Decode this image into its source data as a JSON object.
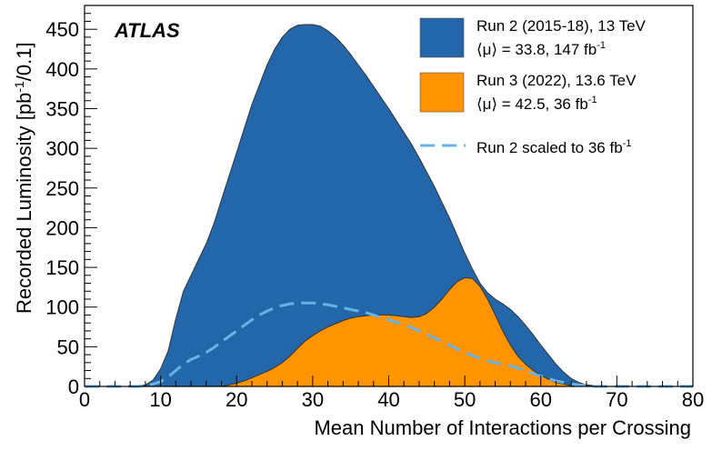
{
  "chart_data": {
    "type": "area",
    "experiment_label": "ATLAS",
    "xlabel": "Mean Number of Interactions per Crossing",
    "ylabel": "Recorded Luminosity [pb-1/0.1]",
    "ylabel_parts": {
      "main": "Recorded Luminosity [pb",
      "sup": "-1",
      "tail": "/0.1]"
    },
    "xlim": [
      0,
      80
    ],
    "ylim": [
      0,
      480
    ],
    "x_ticks": [
      0,
      10,
      20,
      30,
      40,
      50,
      60,
      70,
      80
    ],
    "y_ticks": [
      0,
      50,
      100,
      150,
      200,
      250,
      300,
      350,
      400,
      450
    ],
    "legend_position": "top-right",
    "series": [
      {
        "name": "Run 2 (2015-18), 13 TeV",
        "stats_label": "⟨μ⟩ = 33.8, 147 fb-1",
        "stats_parts": {
          "main": "⟨μ⟩ = 33.8, 147 fb",
          "sup": "-1"
        },
        "style": "filled",
        "color": "#2367aa",
        "points": [
          [
            0,
            0
          ],
          [
            7,
            0
          ],
          [
            8,
            2
          ],
          [
            9,
            8
          ],
          [
            10,
            22
          ],
          [
            11,
            45
          ],
          [
            12,
            85
          ],
          [
            13,
            120
          ],
          [
            14,
            140
          ],
          [
            15,
            160
          ],
          [
            16,
            180
          ],
          [
            17,
            205
          ],
          [
            18,
            235
          ],
          [
            19,
            265
          ],
          [
            20,
            295
          ],
          [
            21,
            325
          ],
          [
            22,
            355
          ],
          [
            23,
            380
          ],
          [
            24,
            405
          ],
          [
            25,
            425
          ],
          [
            26,
            440
          ],
          [
            27,
            450
          ],
          [
            28,
            455
          ],
          [
            29,
            456
          ],
          [
            30,
            456
          ],
          [
            31,
            454
          ],
          [
            32,
            448
          ],
          [
            33,
            440
          ],
          [
            34,
            430
          ],
          [
            35,
            418
          ],
          [
            36,
            405
          ],
          [
            37,
            392
          ],
          [
            38,
            378
          ],
          [
            39,
            364
          ],
          [
            40,
            350
          ],
          [
            41,
            335
          ],
          [
            42,
            320
          ],
          [
            43,
            305
          ],
          [
            44,
            288
          ],
          [
            45,
            270
          ],
          [
            46,
            252
          ],
          [
            47,
            232
          ],
          [
            48,
            212
          ],
          [
            49,
            190
          ],
          [
            50,
            168
          ],
          [
            51,
            148
          ],
          [
            52,
            130
          ],
          [
            53,
            118
          ],
          [
            54,
            110
          ],
          [
            55,
            104
          ],
          [
            56,
            97
          ],
          [
            57,
            88
          ],
          [
            58,
            77
          ],
          [
            59,
            65
          ],
          [
            60,
            52
          ],
          [
            61,
            40
          ],
          [
            62,
            28
          ],
          [
            63,
            18
          ],
          [
            64,
            10
          ],
          [
            65,
            5
          ],
          [
            66,
            2
          ],
          [
            67,
            1
          ],
          [
            68,
            0
          ],
          [
            80,
            0
          ]
        ]
      },
      {
        "name": "Run 3 (2022), 13.6 TeV",
        "stats_label": "⟨μ⟩ = 42.5, 36 fb-1",
        "stats_parts": {
          "main": "⟨μ⟩ = 42.5, 36 fb",
          "sup": "-1"
        },
        "style": "filled",
        "color": "#ff9400",
        "points": [
          [
            0,
            0
          ],
          [
            18,
            0
          ],
          [
            19,
            2
          ],
          [
            20,
            4
          ],
          [
            21,
            7
          ],
          [
            22,
            11
          ],
          [
            23,
            15
          ],
          [
            24,
            19
          ],
          [
            25,
            24
          ],
          [
            26,
            30
          ],
          [
            27,
            38
          ],
          [
            28,
            48
          ],
          [
            29,
            57
          ],
          [
            30,
            64
          ],
          [
            31,
            70
          ],
          [
            32,
            75
          ],
          [
            33,
            79
          ],
          [
            34,
            83
          ],
          [
            35,
            86
          ],
          [
            36,
            88
          ],
          [
            37,
            89
          ],
          [
            38,
            90
          ],
          [
            39,
            90
          ],
          [
            40,
            90
          ],
          [
            41,
            89
          ],
          [
            42,
            88
          ],
          [
            43,
            87
          ],
          [
            44,
            88
          ],
          [
            45,
            92
          ],
          [
            46,
            100
          ],
          [
            47,
            110
          ],
          [
            48,
            122
          ],
          [
            49,
            132
          ],
          [
            50,
            137
          ],
          [
            51,
            136
          ],
          [
            52,
            126
          ],
          [
            53,
            110
          ],
          [
            54,
            90
          ],
          [
            55,
            70
          ],
          [
            56,
            52
          ],
          [
            57,
            38
          ],
          [
            58,
            28
          ],
          [
            59,
            20
          ],
          [
            60,
            14
          ],
          [
            61,
            9
          ],
          [
            62,
            5
          ],
          [
            63,
            3
          ],
          [
            64,
            1
          ],
          [
            65,
            0
          ],
          [
            80,
            0
          ]
        ]
      },
      {
        "name": "Run 2 scaled to 36 fb-1",
        "name_parts": {
          "main": "Run 2 scaled to 36 fb",
          "sup": "-1"
        },
        "style": "dashed",
        "color": "#6ab2e6",
        "points": [
          [
            0,
            0
          ],
          [
            7,
            0
          ],
          [
            8,
            1
          ],
          [
            9,
            3
          ],
          [
            10,
            6
          ],
          [
            11,
            12
          ],
          [
            12,
            20
          ],
          [
            13,
            28
          ],
          [
            14,
            34
          ],
          [
            15,
            38
          ],
          [
            16,
            43
          ],
          [
            17,
            49
          ],
          [
            18,
            56
          ],
          [
            19,
            63
          ],
          [
            20,
            70
          ],
          [
            21,
            77
          ],
          [
            22,
            84
          ],
          [
            23,
            90
          ],
          [
            24,
            95
          ],
          [
            25,
            99
          ],
          [
            26,
            102
          ],
          [
            27,
            104
          ],
          [
            28,
            105
          ],
          [
            29,
            105
          ],
          [
            30,
            105
          ],
          [
            31,
            104
          ],
          [
            32,
            103
          ],
          [
            33,
            101
          ],
          [
            34,
            99
          ],
          [
            35,
            97
          ],
          [
            36,
            95
          ],
          [
            37,
            93
          ],
          [
            38,
            90
          ],
          [
            39,
            87
          ],
          [
            40,
            84
          ],
          [
            41,
            81
          ],
          [
            42,
            78
          ],
          [
            43,
            74
          ],
          [
            44,
            70
          ],
          [
            45,
            66
          ],
          [
            46,
            61
          ],
          [
            47,
            57
          ],
          [
            48,
            52
          ],
          [
            49,
            47
          ],
          [
            50,
            43
          ],
          [
            51,
            39
          ],
          [
            52,
            35
          ],
          [
            53,
            32
          ],
          [
            54,
            30
          ],
          [
            55,
            28
          ],
          [
            56,
            26
          ],
          [
            57,
            23
          ],
          [
            58,
            20
          ],
          [
            59,
            16
          ],
          [
            60,
            13
          ],
          [
            61,
            10
          ],
          [
            62,
            7
          ],
          [
            63,
            5
          ],
          [
            64,
            3
          ],
          [
            65,
            2
          ],
          [
            66,
            1
          ],
          [
            67,
            0
          ],
          [
            80,
            0
          ]
        ]
      }
    ]
  }
}
